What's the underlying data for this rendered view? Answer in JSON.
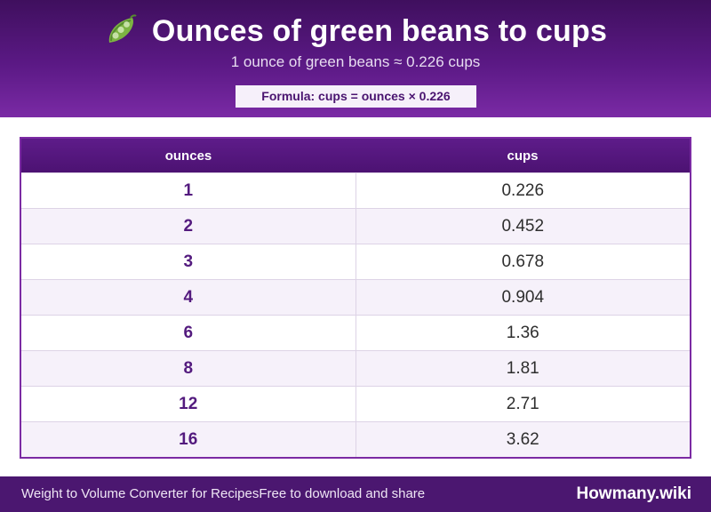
{
  "header": {
    "icon": "pea-pod-icon",
    "title": "Ounces of green beans to cups",
    "subtitle": "1 ounce of green beans ≈ 0.226 cups",
    "formula": "Formula: cups = ounces × 0.226"
  },
  "table": {
    "columns": [
      "ounces",
      "cups"
    ],
    "rows": [
      {
        "ounces": "1",
        "cups": "0.226"
      },
      {
        "ounces": "2",
        "cups": "0.452"
      },
      {
        "ounces": "3",
        "cups": "0.678"
      },
      {
        "ounces": "4",
        "cups": "0.904"
      },
      {
        "ounces": "6",
        "cups": "1.36"
      },
      {
        "ounces": "8",
        "cups": "1.81"
      },
      {
        "ounces": "12",
        "cups": "2.71"
      },
      {
        "ounces": "16",
        "cups": "3.62"
      }
    ]
  },
  "footer": {
    "left_text": "Weight to Volume Converter for RecipesFree to download and share",
    "brand": "Howmany.wiki"
  },
  "colors": {
    "header_dark": "#3f0f5e",
    "header_light": "#7a2aa5",
    "accent": "#531a7e",
    "footer": "#4b1770"
  }
}
